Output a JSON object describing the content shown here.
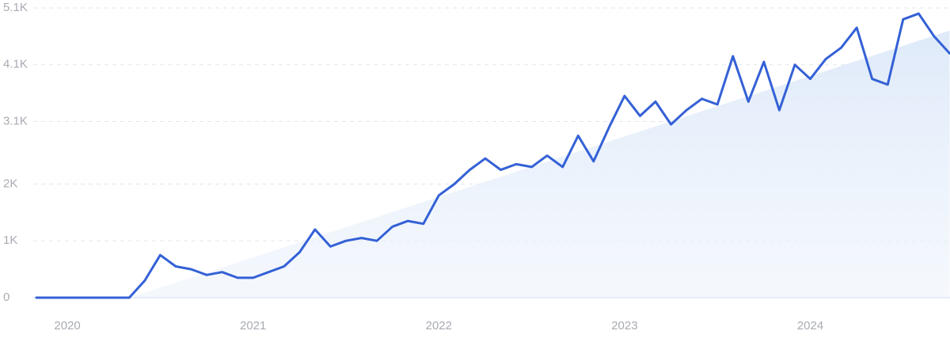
{
  "chart_data": {
    "type": "line",
    "color": "#3461d6",
    "trend_color": "#dde9f9",
    "categories": [
      null,
      null,
      "2020",
      null,
      null,
      null,
      null,
      null,
      null,
      null,
      null,
      null,
      null,
      null,
      "2021",
      null,
      null,
      null,
      null,
      null,
      null,
      null,
      null,
      null,
      null,
      null,
      "2022",
      null,
      null,
      null,
      null,
      null,
      null,
      null,
      null,
      null,
      null,
      null,
      "2023",
      null,
      null,
      null,
      null,
      null,
      null,
      null,
      null,
      null,
      null,
      null,
      "2024",
      null,
      null,
      null,
      null,
      null,
      null,
      null,
      null,
      null
    ],
    "values": [
      0,
      0,
      0,
      0,
      0,
      0,
      0,
      300,
      750,
      550,
      500,
      400,
      450,
      350,
      350,
      450,
      550,
      800,
      1200,
      900,
      1000,
      1050,
      1000,
      1250,
      1350,
      1300,
      1800,
      2000,
      2250,
      2450,
      2250,
      2350,
      2300,
      2500,
      2300,
      2850,
      2400,
      3000,
      3550,
      3200,
      3450,
      3050,
      3300,
      3500,
      3400,
      4250,
      3450,
      4150,
      3300,
      4100,
      3850,
      4200,
      4400,
      4750,
      3850,
      3750,
      4900,
      5000,
      4600,
      4300
    ],
    "trend": [
      null,
      null,
      null,
      null,
      null,
      null,
      0,
      89,
      177,
      266,
      355,
      443,
      532,
      621,
      709,
      798,
      887,
      975,
      1064,
      1153,
      1242,
      1330,
      1419,
      1508,
      1596,
      1685,
      1774,
      1862,
      1951,
      2040,
      2128,
      2217,
      2306,
      2394,
      2483,
      2572,
      2660,
      2749,
      2838,
      2926,
      3015,
      3104,
      3192,
      3281,
      3370,
      3458,
      3547,
      3636,
      3725,
      3813,
      3902,
      3991,
      4079,
      4168,
      4257,
      4345,
      4434,
      4523,
      4611,
      4700
    ],
    "ylim": [
      0,
      5100
    ],
    "yticks": [
      0,
      {
        "value": 1000,
        "label": "1K"
      },
      {
        "value": 2000,
        "label": "2K"
      },
      {
        "value": 3100,
        "label": "3.1K"
      },
      {
        "value": 4100,
        "label": "4.1K"
      },
      {
        "value": 5100,
        "label": "5.1K"
      }
    ],
    "grid": true
  }
}
